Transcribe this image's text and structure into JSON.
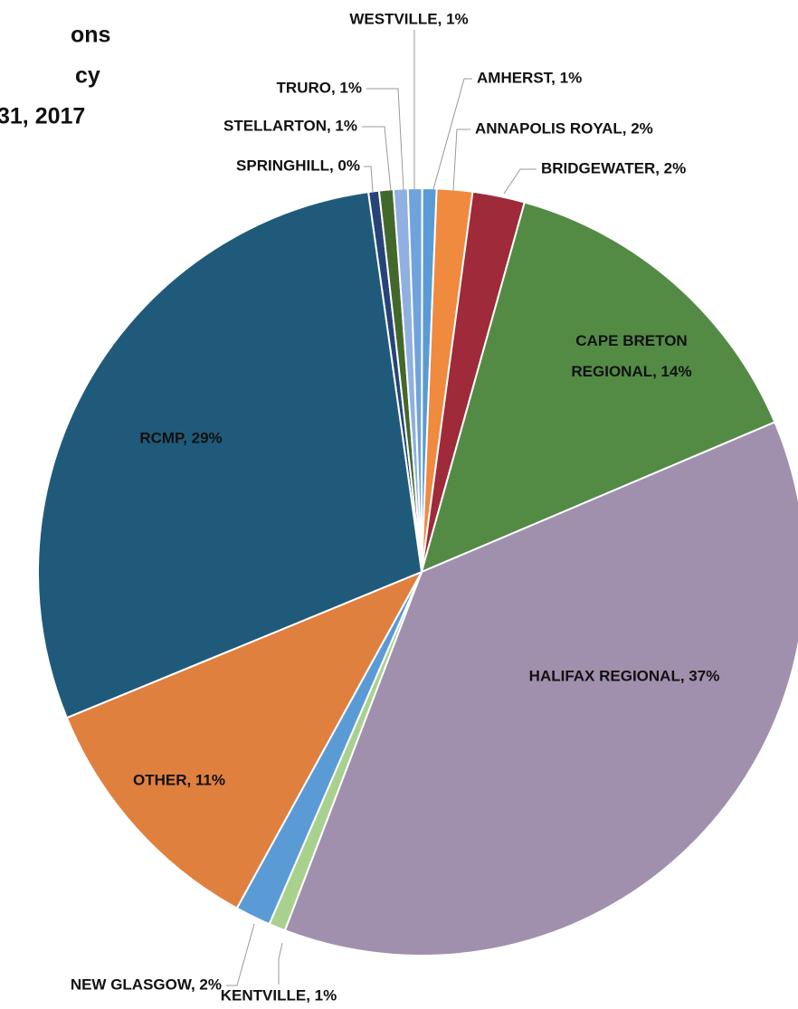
{
  "chart_data": {
    "type": "pie",
    "title_lines": [
      "ons",
      "cy",
      "31, 2017"
    ],
    "start_angle": -8,
    "values": [
      0.45,
      0.6,
      0.6,
      0.6,
      0.6,
      1.5,
      2.2,
      14.3,
      37.2,
      0.7,
      1.5,
      10.8,
      29
    ],
    "value_labels": [
      "SPRINGHILL, 0%",
      "STELLARTON, 1%",
      "TRURO, 1%",
      "WESTVILLE, 1%",
      "AMHERST, 1%",
      "ANNAPOLIS ROYAL, 2%",
      "BRIDGEWATER, 2%",
      "CAPE BRETON REGIONAL, 14%",
      "HALIFAX REGIONAL, 37%",
      "KENTVILLE, 1%",
      "NEW GLASGOW, 2%",
      "OTHER, 11%",
      "RCMP, 29%"
    ],
    "colors": [
      "#264478",
      "#43682b",
      "#8fb0e0",
      "#6fa3dc",
      "#5b9bd5",
      "#ef8a3f",
      "#9e2a3a",
      "#538b45",
      "#a090ae",
      "#a9d18e",
      "#5b9bd5",
      "#e0803f",
      "#1f5a7a"
    ]
  }
}
